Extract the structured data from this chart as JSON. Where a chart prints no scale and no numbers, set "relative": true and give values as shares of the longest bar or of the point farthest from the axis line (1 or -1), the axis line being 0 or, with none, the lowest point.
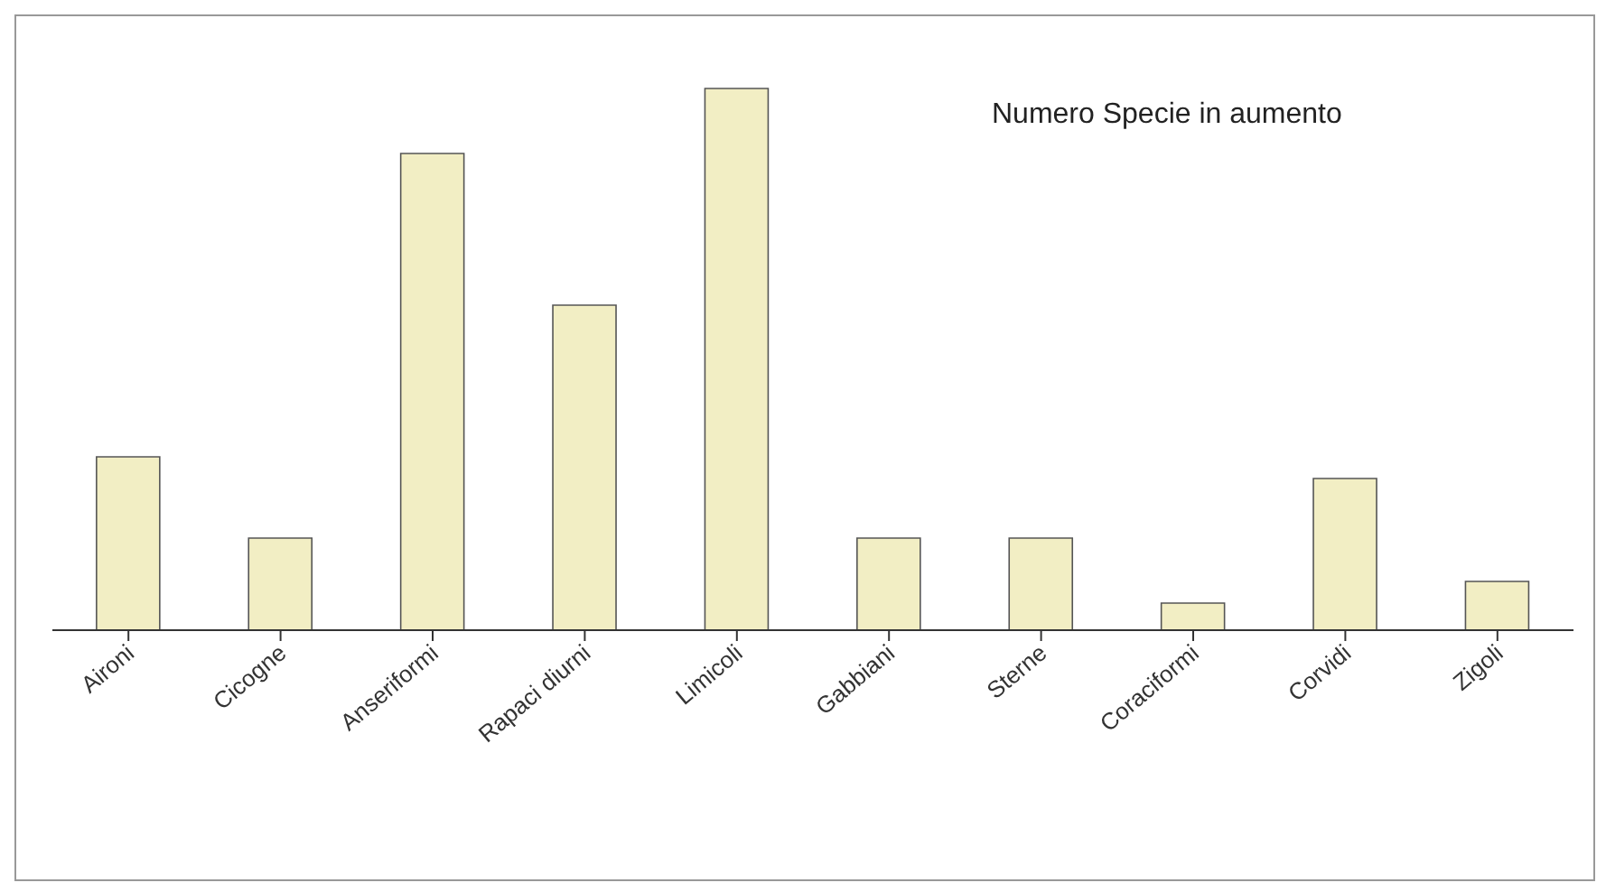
{
  "chart_data": {
    "type": "bar",
    "title": "Numero Specie in aumento",
    "relative": true,
    "categories": [
      "Aironi",
      "Cicogne",
      "Anseriformi",
      "Rapaci diurni",
      "Limicoli",
      "Gabbiani",
      "Sterne",
      "Coraciformi",
      "Corvidi",
      "Zigoli"
    ],
    "values": [
      0.32,
      0.17,
      0.88,
      0.6,
      1,
      0.17,
      0.17,
      0.05,
      0.28,
      0.09
    ],
    "color": "#f2eec4",
    "grid": false,
    "legend": false
  }
}
